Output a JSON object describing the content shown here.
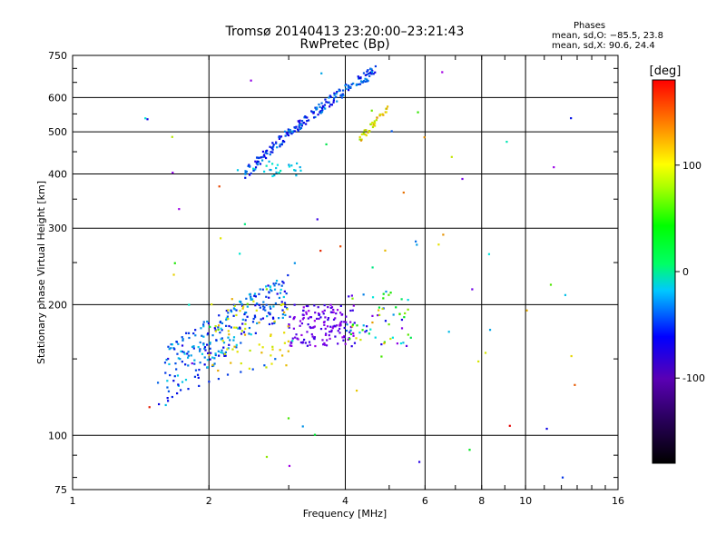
{
  "chart_data": {
    "type": "scatter",
    "title": "Tromsø 20140413 23:20:00–23:21:43",
    "subtitle": "RwPretec (Bp)",
    "stats_header": "Phases",
    "stats_line1": "mean, sd,O: −85.5, 23.8",
    "stats_line2": "mean, sd,X:  90.6, 24.4",
    "xlabel": "Frequency [MHz]",
    "ylabel": "Stationary phase Virtual Height [km]",
    "xscale": "log",
    "yscale": "log",
    "xlim": [
      1,
      16
    ],
    "ylim": [
      75,
      750
    ],
    "xticks": [
      1,
      2,
      4,
      6,
      8,
      10,
      16
    ],
    "yticks": [
      75,
      100,
      200,
      300,
      400,
      500,
      600,
      750
    ],
    "grid": true,
    "colorbar": {
      "label": "[deg]",
      "range": [
        -180,
        180
      ],
      "ticks": [
        -100,
        0,
        100
      ]
    },
    "series": [
      {
        "values": [
          {
            "x": 1.55,
            "y": 118,
            "phase": -110
          },
          {
            "x": 1.62,
            "y": 122,
            "phase": -108
          },
          {
            "x": 1.7,
            "y": 125,
            "phase": -105
          },
          {
            "x": 1.8,
            "y": 128,
            "phase": -100
          },
          {
            "x": 1.9,
            "y": 130,
            "phase": -98
          },
          {
            "x": 2.0,
            "y": 133,
            "phase": -95
          },
          {
            "x": 2.1,
            "y": 135,
            "phase": -92
          },
          {
            "x": 2.2,
            "y": 138,
            "phase": -90
          },
          {
            "x": 2.35,
            "y": 140,
            "phase": -88
          },
          {
            "x": 2.5,
            "y": 142,
            "phase": -85
          },
          {
            "x": 2.65,
            "y": 145,
            "phase": -80
          },
          {
            "x": 2.8,
            "y": 150,
            "phase": -75
          }
        ]
      }
    ]
  }
}
